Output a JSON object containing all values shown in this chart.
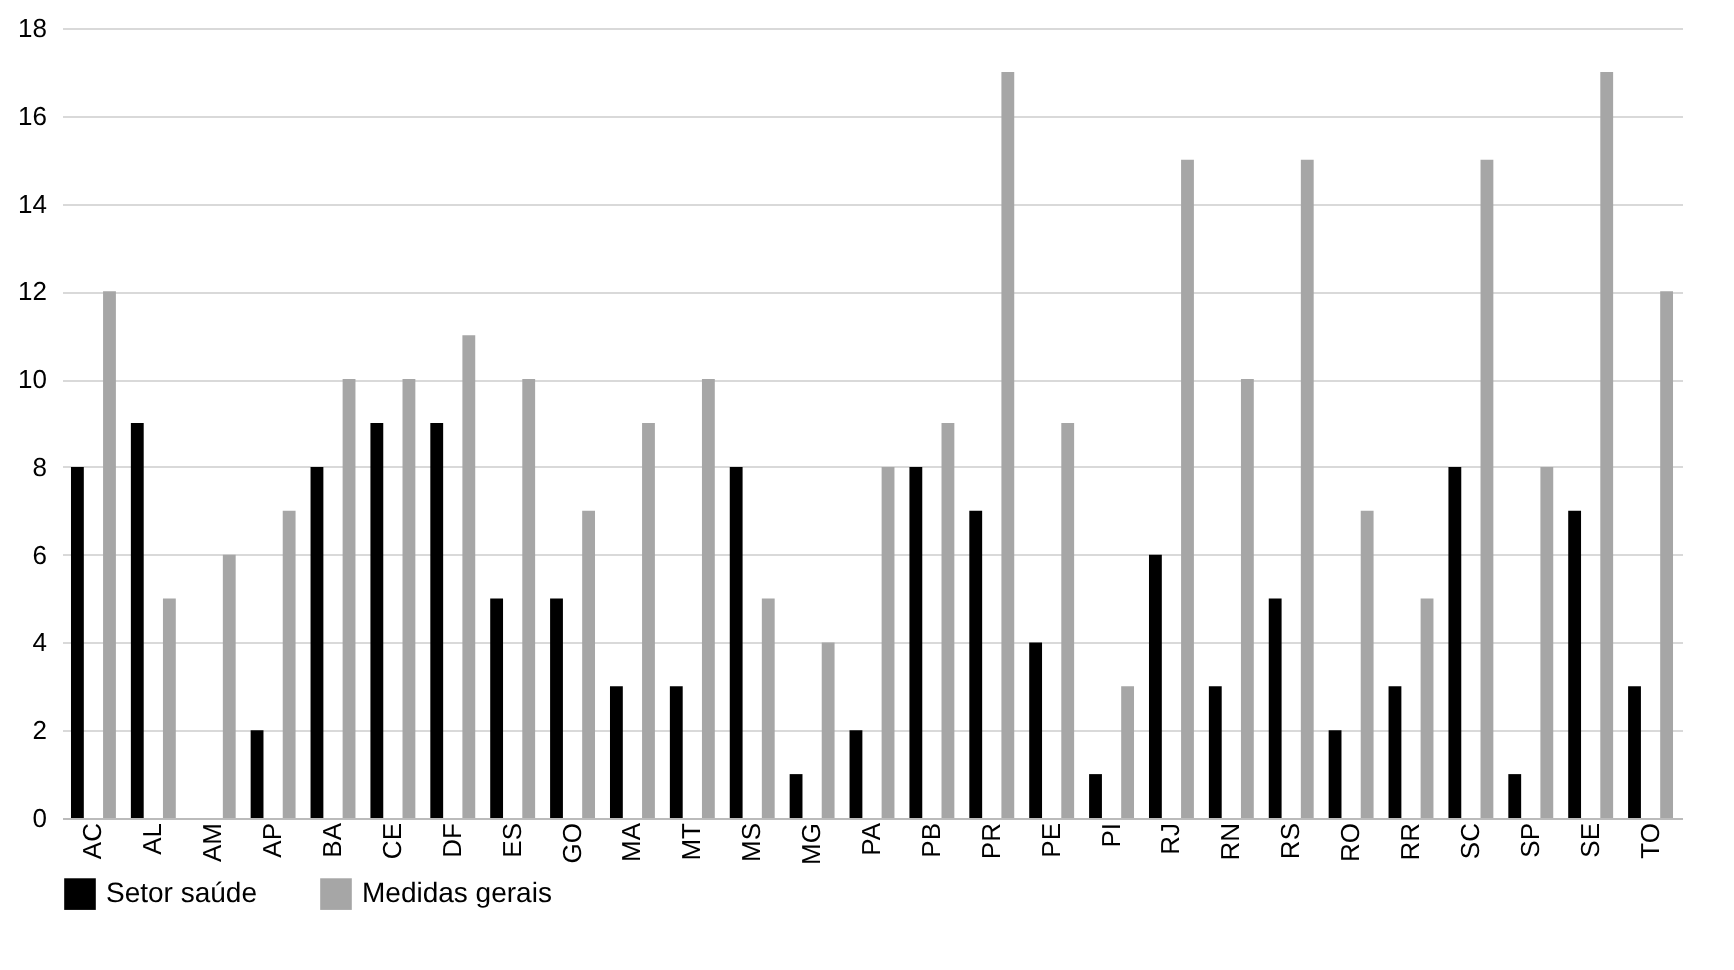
{
  "chart_data": {
    "type": "bar",
    "categories": [
      "AC",
      "AL",
      "AM",
      "AP",
      "BA",
      "CE",
      "DF",
      "ES",
      "GO",
      "MA",
      "MT",
      "MS",
      "MG",
      "PA",
      "PB",
      "PR",
      "PE",
      "PI",
      "RJ",
      "RN",
      "RS",
      "RO",
      "RR",
      "SC",
      "SP",
      "SE",
      "TO"
    ],
    "series": [
      {
        "name": "Setor saúde",
        "color": "#000000",
        "values": [
          8,
          9,
          0,
          2,
          8,
          9,
          9,
          5,
          5,
          3,
          3,
          8,
          1,
          2,
          8,
          7,
          4,
          1,
          6,
          3,
          5,
          2,
          3,
          8,
          1,
          7,
          3
        ]
      },
      {
        "name": "Medidas gerais",
        "color": "#a6a6a6",
        "values": [
          12,
          5,
          6,
          7,
          10,
          10,
          11,
          10,
          7,
          9,
          10,
          5,
          4,
          8,
          9,
          17,
          9,
          3,
          15,
          10,
          15,
          7,
          5,
          15,
          8,
          17,
          12
        ]
      }
    ],
    "ylim": [
      0,
      18
    ],
    "yticks": [
      0,
      2,
      4,
      6,
      8,
      10,
      12,
      14,
      16,
      18
    ],
    "grid": "y",
    "legend": "bottom"
  }
}
